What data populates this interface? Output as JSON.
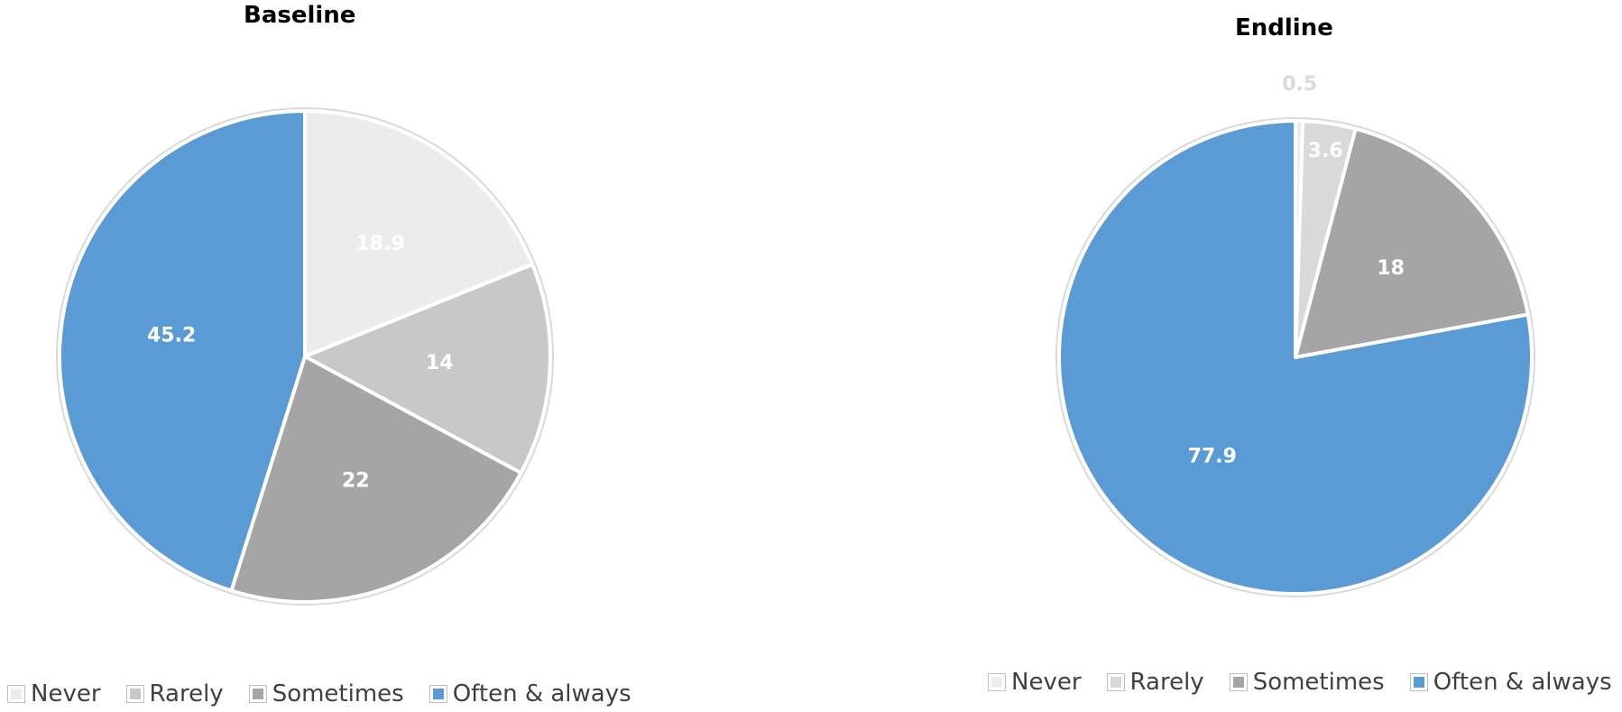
{
  "chart_data": [
    {
      "type": "pie",
      "title": "Baseline",
      "categories": [
        "Never",
        "Rarely",
        "Sometimes",
        "Often & always"
      ],
      "values": [
        18.9,
        14,
        22,
        45.2
      ],
      "labels": [
        "18.9",
        "14",
        "22",
        "45.2"
      ],
      "colors": [
        "#ececec",
        "#c8c8c8",
        "#a5a5a5",
        "#5b9bd5"
      ],
      "legend": "bottom"
    },
    {
      "type": "pie",
      "title": "Endline",
      "categories": [
        "Never",
        "Rarely",
        "Sometimes",
        "Often & always"
      ],
      "values": [
        0.5,
        3.6,
        18,
        77.9
      ],
      "labels": [
        "0.5",
        "3.6",
        "18",
        "77.9"
      ],
      "colors": [
        "#ececec",
        "#d9d9d9",
        "#a5a5a5",
        "#5b9bd5"
      ],
      "legend": "bottom"
    }
  ]
}
